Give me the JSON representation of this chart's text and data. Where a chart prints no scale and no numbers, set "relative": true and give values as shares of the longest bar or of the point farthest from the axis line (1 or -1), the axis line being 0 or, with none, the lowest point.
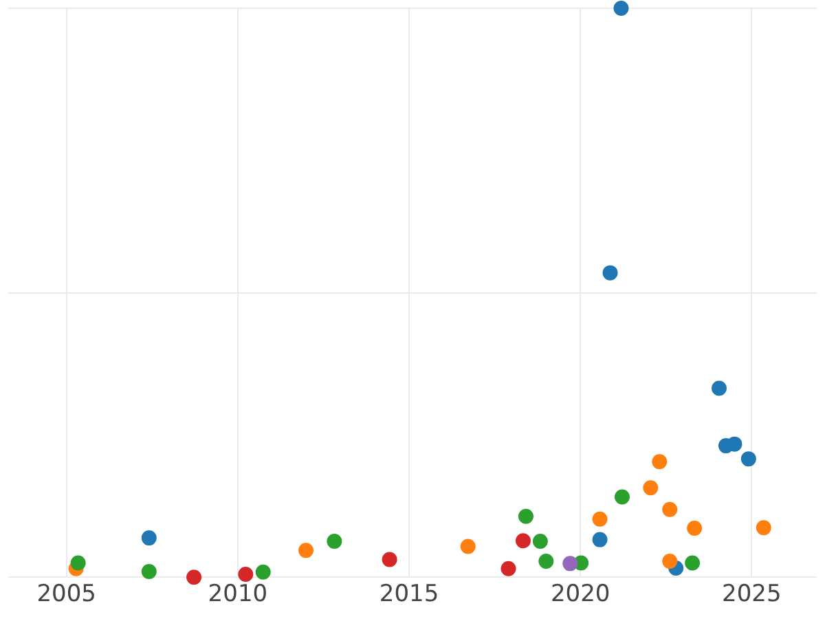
{
  "chart_data": {
    "type": "scatter",
    "relative": true,
    "grid": true,
    "legend": false,
    "marker": "circle",
    "xlim": [
      2003.3,
      2026.9
    ],
    "xticks": [
      2005,
      2010,
      2015,
      2020,
      2025
    ],
    "series": [
      {
        "color": "#1f77b4",
        "x": [
          2007.41,
          2020.57,
          2020.87,
          2021.19,
          2022.79,
          2024.05,
          2024.25,
          2024.5,
          2024.91
        ],
        "values": [
          0.069,
          0.066,
          0.535,
          1,
          0.016,
          0.332,
          0.231,
          0.234,
          0.208
        ]
      },
      {
        "color": "#ff7f0e",
        "x": [
          2005.28,
          2011.99,
          2016.72,
          2020.57,
          2022.05,
          2022.31,
          2022.61,
          2022.61,
          2023.33,
          2025.35
        ],
        "values": [
          0.015,
          0.047,
          0.054,
          0.102,
          0.157,
          0.203,
          0.119,
          0.028,
          0.086,
          0.087
        ]
      },
      {
        "color": "#2ca02c",
        "x": [
          2005.34,
          2007.41,
          2010.74,
          2012.82,
          2018.41,
          2018.83,
          2019.0,
          2020.02,
          2021.22,
          2023.27
        ],
        "values": [
          0.025,
          0.01,
          0.009,
          0.063,
          0.107,
          0.063,
          0.028,
          0.025,
          0.141,
          0.025
        ]
      },
      {
        "color": "#d62728",
        "x": [
          2008.72,
          2010.23,
          2014.43,
          2017.9,
          2018.33
        ],
        "values": [
          0,
          0.005,
          0.031,
          0.015,
          0.064
        ]
      },
      {
        "color": "#9467bd",
        "x": [
          2019.7
        ],
        "values": [
          0.024
        ]
      }
    ]
  }
}
